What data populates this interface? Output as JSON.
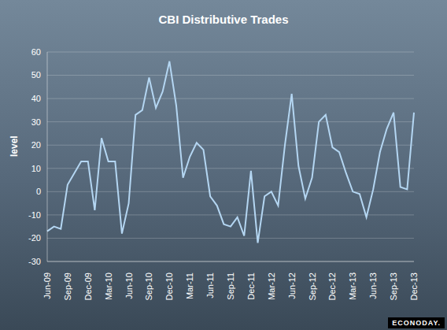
{
  "chart_data": {
    "type": "line",
    "title": "CBI Distributive Trades",
    "y_label": "level",
    "annotation": "ECONODAY.",
    "categories": [
      "Jun-09",
      null,
      null,
      "Sep-09",
      null,
      null,
      "Dec-09",
      null,
      null,
      "Mar-10",
      null,
      null,
      "Jun-10",
      null,
      null,
      "Sep-10",
      null,
      null,
      "Dec-10",
      null,
      null,
      "Mar-11",
      null,
      null,
      "Jun-11",
      null,
      null,
      "Sep-11",
      null,
      null,
      "Dec-11",
      null,
      null,
      "Mar-12",
      null,
      null,
      "Jun-12",
      null,
      null,
      "Sep-12",
      null,
      null,
      "Dec-12",
      null,
      null,
      "Mar-13",
      null,
      null,
      "Jun-13",
      null,
      null,
      "Sep-13",
      null,
      null,
      "Dec-13"
    ],
    "values": [
      -17,
      -15,
      -16,
      3,
      8,
      13,
      13,
      -8,
      23,
      13,
      13,
      -18,
      -5,
      33,
      35,
      49,
      36,
      43,
      56,
      37,
      6,
      15,
      21,
      18,
      -2,
      -6,
      -14,
      -15,
      -11,
      -19,
      9,
      -22,
      -2,
      0,
      -6,
      20,
      42,
      11,
      -3,
      6,
      30,
      33,
      19,
      17,
      8,
      0,
      -1,
      -11,
      1,
      17,
      27,
      34,
      2,
      1,
      34
    ],
    "color": "#b4d6f2",
    "ylim": [
      -30,
      60
    ],
    "yticks": [
      -30,
      -20,
      -10,
      0,
      10,
      20,
      30,
      40,
      50,
      60
    ],
    "grid": true
  }
}
